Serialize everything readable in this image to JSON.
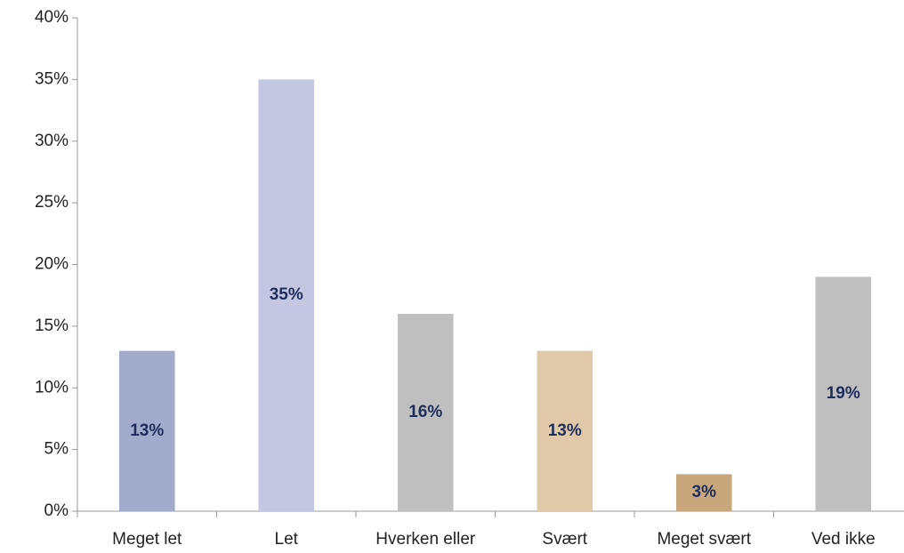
{
  "chart_data": {
    "type": "bar",
    "categories": [
      "Meget let",
      "Let",
      "Hverken eller",
      "Svært",
      "Meget svært",
      "Ved ikke"
    ],
    "values": [
      13,
      35,
      16,
      13,
      3,
      19
    ],
    "value_labels": [
      "13%",
      "35%",
      "16%",
      "13%",
      "3%",
      "19%"
    ],
    "colors": [
      "#a2abcb",
      "#c3c7e2",
      "#bfbfbf",
      "#dfc9a9",
      "#c9a77c",
      "#bfbfbf"
    ],
    "ylim": [
      0,
      40
    ],
    "yticks": [
      {
        "value": 0,
        "label": "0%"
      },
      {
        "value": 5,
        "label": "5%"
      },
      {
        "value": 10,
        "label": "10%"
      },
      {
        "value": 15,
        "label": "15%"
      },
      {
        "value": 20,
        "label": "20%"
      },
      {
        "value": 25,
        "label": "25%"
      },
      {
        "value": 30,
        "label": "30%"
      },
      {
        "value": 35,
        "label": "35%"
      },
      {
        "value": 40,
        "label": "40%"
      }
    ],
    "grid": false
  }
}
